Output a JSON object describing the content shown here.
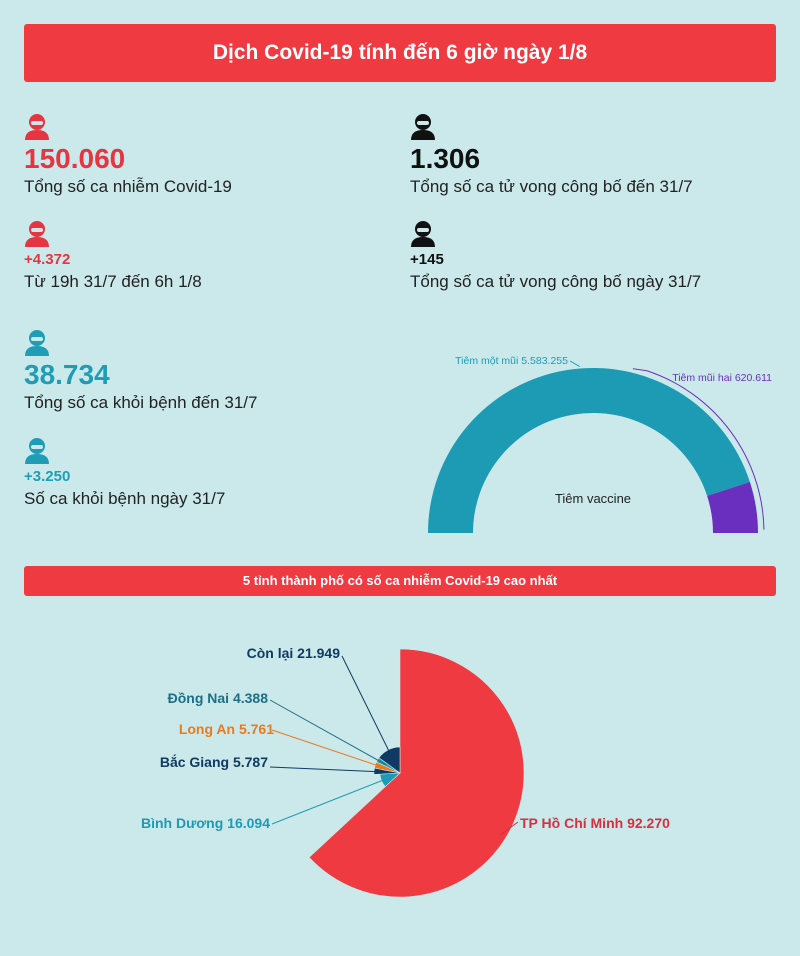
{
  "header": {
    "title": "Dịch Covid-19 tính đến 6 giờ ngày 1/8"
  },
  "stats": {
    "cases_total": {
      "value": "150.060",
      "label": "Tổng số ca nhiễm Covid-19"
    },
    "cases_new": {
      "value": "+4.372",
      "label": "Từ 19h 31/7 đến 6h 1/8"
    },
    "deaths_total": {
      "value": "1.306",
      "label": "Tổng số ca tử vong công bố đến 31/7"
    },
    "deaths_new": {
      "value": "+145",
      "label": "Tổng số ca tử vong công bố ngày 31/7"
    },
    "recovered_total": {
      "value": "38.734",
      "label": "Tổng số ca khỏi bệnh đến 31/7"
    },
    "recovered_new": {
      "value": "+3.250",
      "label": "Số ca khỏi bệnh ngày 31/7"
    }
  },
  "section2": {
    "title": "5 tỉnh thành phố có số ca nhiễm Covid-19 cao nhất"
  },
  "colors": {
    "red": "#ef3a41",
    "teal": "#1d9bb5",
    "purple": "#6a2fbf",
    "navy": "#0f3a63",
    "orange": "#e97a1e",
    "bg": "#cbe9ea"
  },
  "icons": [
    "person-icon"
  ],
  "chart_data": [
    {
      "type": "pie",
      "subtype": "half-donut",
      "title": "Tiêm vaccine",
      "slices": [
        {
          "label": "Tiêm một mũi 5.583.255",
          "name": "Tiêm một mũi",
          "value": 5583255,
          "color": "#1d9bb5",
          "label_color": "#1d9bb5"
        },
        {
          "label": "Tiêm mũi hai 620.611",
          "name": "Tiêm mũi hai",
          "value": 620611,
          "color": "#6a2fbf",
          "label_color": "#6a2fbf"
        }
      ]
    },
    {
      "type": "pie",
      "title": "5 tỉnh thành phố có số ca nhiễm Covid-19 cao nhất",
      "slices": [
        {
          "label": "TP Hồ Chí Minh 92.270",
          "name": "TP Hồ Chí Minh",
          "value": 92270,
          "color": "#ef3a41",
          "label_color": "#d63040"
        },
        {
          "label": "Bình Dương 16.094",
          "name": "Bình Dương",
          "value": 16094,
          "color": "#1d9bb5",
          "label_color": "#1d9bb5"
        },
        {
          "label": "Bắc Giang 5.787",
          "name": "Bắc Giang",
          "value": 5787,
          "color": "#0f3a63",
          "label_color": "#0f3a63"
        },
        {
          "label": "Long An 5.761",
          "name": "Long An",
          "value": 5761,
          "color": "#e97a1e",
          "label_color": "#e97a1e"
        },
        {
          "label": "Đồng Nai 4.388",
          "name": "Đồng Nai",
          "value": 4388,
          "color": "#1d9bb5",
          "label_color": "#1d6f86"
        },
        {
          "label": "Còn lại 21.949",
          "name": "Còn lại",
          "value": 21949,
          "color": "#0f3a63",
          "label_color": "#0f3a63"
        }
      ]
    }
  ]
}
